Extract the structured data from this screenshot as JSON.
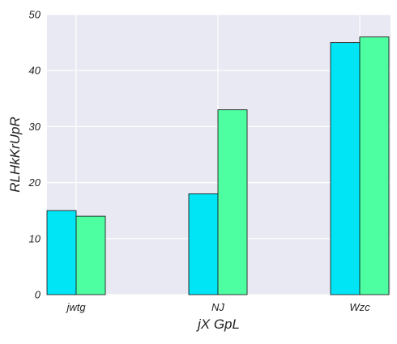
{
  "chart_data": {
    "type": "bar",
    "categories": [
      "jwtg",
      "NJ",
      "Wzc"
    ],
    "series": [
      {
        "values": [
          15,
          18,
          45
        ],
        "color": "#00e5f5"
      },
      {
        "values": [
          14,
          33,
          46
        ],
        "color": "#4dffa1"
      }
    ],
    "xlabel": "jX GpL",
    "ylabel": "RLHkKrUpR",
    "ylim": [
      0,
      50
    ],
    "yticks": [
      "0",
      "10",
      "20",
      "30",
      "40",
      "50"
    ],
    "grid": true,
    "background": "#e8e9f2",
    "grid_color": "#ffffff",
    "bar_edge": "#222222"
  }
}
